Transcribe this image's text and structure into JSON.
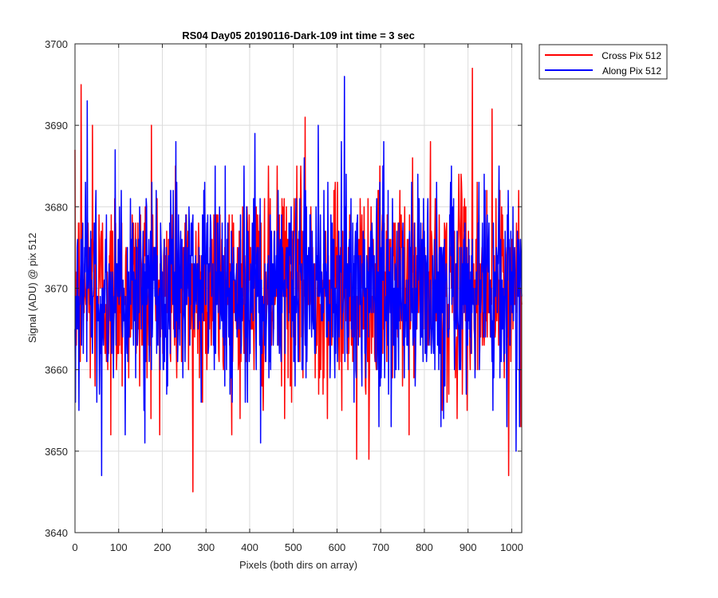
{
  "chart_data": {
    "type": "line",
    "title": "RS04 Day05 20190116-Dark-109 int time = 3 sec",
    "xlabel": "Pixels (both dirs on array)",
    "ylabel": "Signal (ADU) @ pix 512",
    "xlim": [
      0,
      1023
    ],
    "ylim": [
      3640,
      3700
    ],
    "xticks": [
      0,
      100,
      200,
      300,
      400,
      500,
      600,
      700,
      800,
      900,
      1000
    ],
    "yticks": [
      3640,
      3650,
      3660,
      3670,
      3680,
      3690,
      3700
    ],
    "grid": true,
    "legend_position": "outside-top-right",
    "noise_model": {
      "mean": 3670,
      "std": 6.3,
      "points": 1024
    },
    "series": [
      {
        "name": "Cross Pix 512",
        "color": "#ff0000",
        "extremes": [
          {
            "x": 14,
            "y": 3695
          },
          {
            "x": 40,
            "y": 3690
          },
          {
            "x": 175,
            "y": 3690
          },
          {
            "x": 270,
            "y": 3645
          },
          {
            "x": 527,
            "y": 3691
          },
          {
            "x": 910,
            "y": 3697
          },
          {
            "x": 993,
            "y": 3647
          },
          {
            "x": 955,
            "y": 3692
          },
          {
            "x": 645,
            "y": 3649
          },
          {
            "x": 673,
            "y": 3649
          },
          {
            "x": 82,
            "y": 3652
          }
        ]
      },
      {
        "name": "Along Pix 512",
        "color": "#0000ff",
        "extremes": [
          {
            "x": 28,
            "y": 3693
          },
          {
            "x": 61,
            "y": 3647
          },
          {
            "x": 617,
            "y": 3696
          },
          {
            "x": 1010,
            "y": 3650
          },
          {
            "x": 412,
            "y": 3689
          },
          {
            "x": 557,
            "y": 3690
          },
          {
            "x": 425,
            "y": 3651
          },
          {
            "x": 160,
            "y": 3651
          }
        ]
      }
    ]
  }
}
